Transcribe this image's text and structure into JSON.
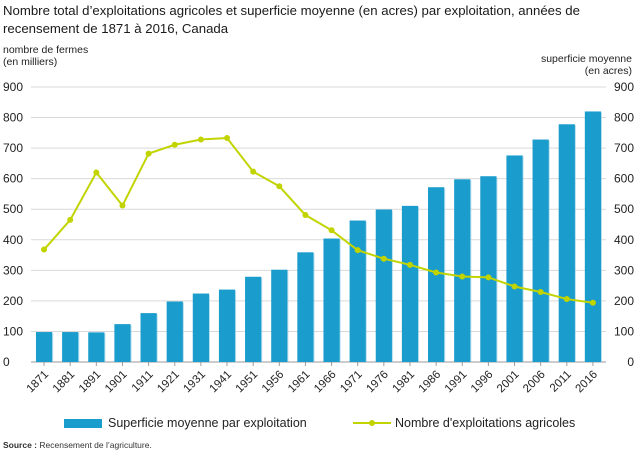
{
  "title": "Nombre total d’exploitations agricoles et superficie moyenne (en acres) par exploitation, années de recensement de 1871 à 2016, Canada",
  "source": {
    "label": "Source :",
    "text": " Recensement de l’agriculture."
  },
  "colors": {
    "bars": "#1a9ccc",
    "line": "#c2d400",
    "grid": "#d9d9d9"
  },
  "chart_data": {
    "type": "bar",
    "categories": [
      "1871",
      "1881",
      "1891",
      "1901",
      "1911",
      "1921",
      "1931",
      "1941",
      "1951",
      "1956",
      "1961",
      "1966",
      "1971",
      "1976",
      "1981",
      "1986",
      "1991",
      "1996",
      "2001",
      "2006",
      "2011",
      "2016"
    ],
    "series": [
      {
        "name": "Superficie moyenne par exploitation",
        "type": "bar",
        "axis": "right",
        "values": [
          98,
          98,
          97,
          124,
          160,
          198,
          224,
          237,
          279,
          302,
          359,
          404,
          463,
          499,
          511,
          572,
          598,
          608,
          676,
          728,
          778,
          820
        ]
      },
      {
        "name": "Nombre d'exploitations agricoles",
        "type": "line",
        "axis": "left",
        "values": [
          368,
          465,
          620,
          512,
          682,
          711,
          728,
          733,
          623,
          575,
          481,
          431,
          366,
          338,
          318,
          293,
          280,
          277,
          247,
          229,
          206,
          194
        ]
      }
    ],
    "ylabel_left": "nombre de fermes\n(en milliers)",
    "ylabel_right": "superficie moyenne\n(en acres)",
    "ylim": [
      0,
      900
    ],
    "yticks": [
      0,
      100,
      200,
      300,
      400,
      500,
      600,
      700,
      800,
      900
    ],
    "grid": true,
    "legend": "bottom"
  }
}
